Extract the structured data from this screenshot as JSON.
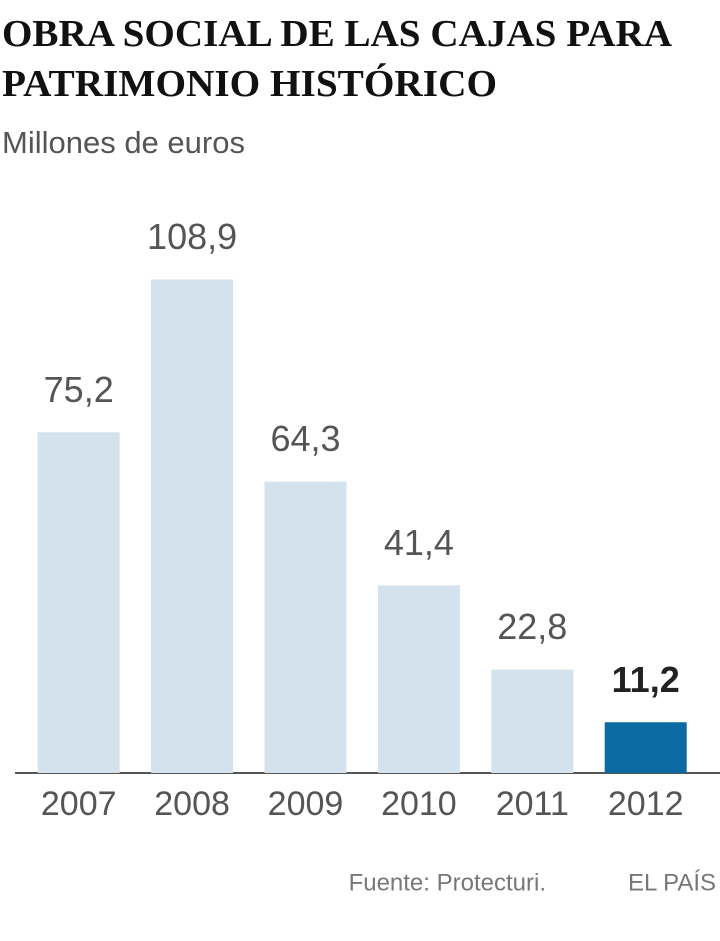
{
  "chart_data": {
    "type": "bar",
    "title": [
      "OBRA SOCIAL DE LAS CAJAS PARA",
      "PATRIMONIO HISTÓRICO"
    ],
    "subtitle": "Millones de euros",
    "categories": [
      "2007",
      "2008",
      "2009",
      "2010",
      "2011",
      "2012"
    ],
    "values": [
      75.2,
      108.9,
      64.3,
      41.4,
      22.8,
      11.2
    ],
    "value_labels": [
      "75,2",
      "108,9",
      "64,3",
      "41,4",
      "22,8",
      "11,2"
    ],
    "colors": [
      "#d3e2ec",
      "#d3e2ec",
      "#d3e2ec",
      "#d3e2ec",
      "#d3e2ec",
      "#0a6aa1"
    ],
    "ylim": [
      0,
      128
    ],
    "source": "Fuente: Protecturi.",
    "credit": "EL PAÍS"
  }
}
